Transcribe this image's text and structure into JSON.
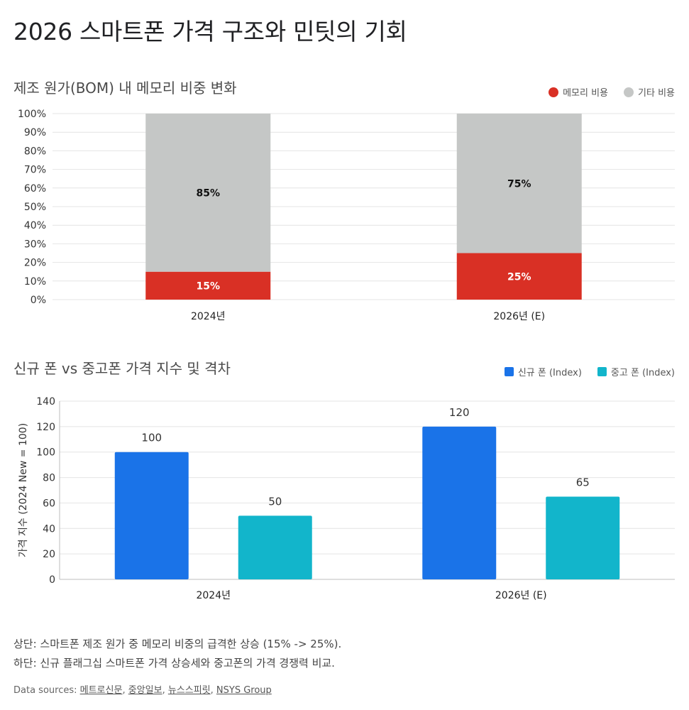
{
  "page_title": "2026 스마트폰 가격 구조와 민팃의 기회",
  "chart1": {
    "title": "제조 원가(BOM) 내 메모리 비중 변화",
    "legend": [
      {
        "label": "메모리 비용",
        "color": "#d93025"
      },
      {
        "label": "기타 비용",
        "color": "#c5c7c6"
      }
    ]
  },
  "chart2": {
    "title": "신규 폰 vs 중고폰 가격 지수 및 격차",
    "legend": [
      {
        "label": "신규 폰 (Index)",
        "color": "#1a73e8"
      },
      {
        "label": "중고 폰 (Index)",
        "color": "#12b5cb"
      }
    ]
  },
  "notes": [
    "상단: 스마트폰 제조 원가 중 메모리 비중의 급격한 상승 (15% -> 25%).",
    "하단: 신규 플래그십 스마트폰 가격 상승세와 중고폰의 가격 경쟁력 비교."
  ],
  "sources": {
    "label": "Data sources:",
    "links": [
      "메트로신문",
      "중앙일보",
      "뉴스스피릿",
      "NSYS Group"
    ]
  },
  "chart_data": [
    {
      "type": "bar",
      "stacked": true,
      "title": "제조 원가(BOM) 내 메모리 비중 변화",
      "categories": [
        "2024년",
        "2026년 (E)"
      ],
      "series": [
        {
          "name": "메모리 비용",
          "values": [
            15,
            25
          ],
          "color": "#d93025",
          "labels": [
            "15%",
            "25%"
          ]
        },
        {
          "name": "기타 비용",
          "values": [
            85,
            75
          ],
          "color": "#c5c7c6",
          "labels": [
            "85%",
            "75%"
          ]
        }
      ],
      "ylim": [
        0,
        100
      ],
      "yticks": [
        "0%",
        "10%",
        "20%",
        "30%",
        "40%",
        "50%",
        "60%",
        "70%",
        "80%",
        "90%",
        "100%"
      ],
      "ylabel": "",
      "grid": true,
      "legend_position": "top-right"
    },
    {
      "type": "bar",
      "stacked": false,
      "title": "신규 폰 vs 중고폰 가격 지수 및 격차",
      "categories": [
        "2024년",
        "2026년 (E)"
      ],
      "series": [
        {
          "name": "신규 폰 (Index)",
          "values": [
            100,
            120
          ],
          "color": "#1a73e8"
        },
        {
          "name": "중고 폰 (Index)",
          "values": [
            50,
            65
          ],
          "color": "#12b5cb"
        }
      ],
      "ylim": [
        0,
        140
      ],
      "yticks": [
        "0",
        "20",
        "40",
        "60",
        "80",
        "100",
        "120",
        "140"
      ],
      "ylabel": "가격 지수 (2024 New = 100)",
      "grid": true,
      "legend_position": "top-right"
    }
  ]
}
